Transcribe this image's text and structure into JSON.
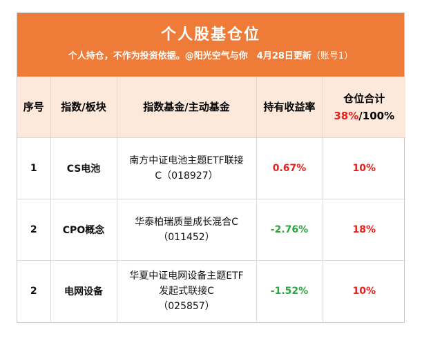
{
  "header": {
    "title": "个人股基仓位",
    "subtitle_main": "个人持仓，不作为投资依据。@阳光空气与你　4月28日更新",
    "subtitle_account": "（账号1）"
  },
  "table": {
    "columns": {
      "index": "序号",
      "sector": "指数/板块",
      "fund": "指数基金/主动基金",
      "return": "持有收益率",
      "position_title": "仓位合计",
      "position_used": "38%",
      "position_total": "/100%"
    },
    "rows": [
      {
        "index": "1",
        "sector": "CS电池",
        "fund_line1": "南方中证电池主题ETF联接",
        "fund_line2": "C（018927）",
        "fund_line3": "",
        "return": "0.67%",
        "position": "10%"
      },
      {
        "index": "2",
        "sector": "CPO概念",
        "fund_line1": "华泰柏瑞质量成长混合C",
        "fund_line2": "（011452）",
        "fund_line3": "",
        "return": "-2.76%",
        "position": "18%"
      },
      {
        "index": "2",
        "sector": "电网设备",
        "fund_line1": "华夏中证电网设备主题ETF",
        "fund_line2": "发起式联接C",
        "fund_line3": "（025857）",
        "return": "-1.52%",
        "position": "10%"
      }
    ]
  },
  "colors": {
    "header_bg": "#ef7b38",
    "table_header_bg": "#fce9dc",
    "positive": "#e6201b",
    "negative": "#2aa63f"
  }
}
